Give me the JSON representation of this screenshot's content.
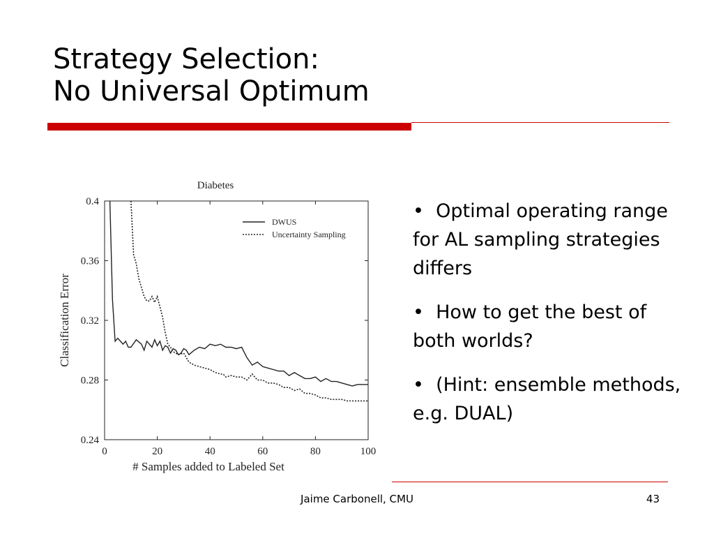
{
  "slide": {
    "title_lines": [
      "Strategy Selection:",
      "No Universal Optimum"
    ],
    "bullets": [
      "Optimal operating range for AL sampling strategies differs",
      "How to get the best of both worlds?",
      "(Hint: ensemble methods, e.g. DUAL)"
    ],
    "footer": "Jaime Carbonell, CMU",
    "page_number": "43",
    "accent_color": "#cc0000"
  },
  "chart_data": {
    "type": "line",
    "title": "Diabetes",
    "xlabel": "# Samples added to Labeled Set",
    "ylabel": "Classification Error",
    "xlim": [
      0,
      100
    ],
    "ylim": [
      0.24,
      0.4
    ],
    "x_ticks": [
      0,
      20,
      40,
      60,
      80,
      100
    ],
    "y_ticks": [
      "0.24",
      "0.28",
      "0.32",
      "0.36",
      "0.4"
    ],
    "legend": "top-right",
    "grid": false,
    "series": [
      {
        "name": "DWUS",
        "style": "solid",
        "x": [
          2,
          3,
          4,
          5,
          6,
          7,
          8,
          9,
          10,
          12,
          14,
          15,
          16,
          18,
          19,
          20,
          21,
          22,
          23,
          24,
          25,
          26,
          27,
          28,
          29,
          30,
          31,
          32,
          34,
          36,
          38,
          40,
          42,
          44,
          46,
          48,
          50,
          52,
          54,
          56,
          58,
          60,
          62,
          64,
          66,
          68,
          70,
          72,
          74,
          76,
          78,
          80,
          82,
          84,
          86,
          88,
          90,
          92,
          94,
          96,
          98,
          100
        ],
        "y": [
          0.4,
          0.334,
          0.306,
          0.308,
          0.306,
          0.304,
          0.306,
          0.302,
          0.302,
          0.307,
          0.304,
          0.3,
          0.306,
          0.302,
          0.307,
          0.303,
          0.306,
          0.3,
          0.303,
          0.302,
          0.298,
          0.301,
          0.3,
          0.297,
          0.298,
          0.301,
          0.3,
          0.297,
          0.3,
          0.302,
          0.301,
          0.304,
          0.303,
          0.304,
          0.302,
          0.302,
          0.301,
          0.302,
          0.295,
          0.29,
          0.292,
          0.289,
          0.288,
          0.287,
          0.286,
          0.286,
          0.283,
          0.285,
          0.283,
          0.281,
          0.281,
          0.282,
          0.279,
          0.281,
          0.279,
          0.279,
          0.278,
          0.277,
          0.276,
          0.277,
          0.277,
          0.277
        ]
      },
      {
        "name": "Uncertainty Sampling",
        "style": "dotted",
        "x": [
          10,
          11,
          12,
          13,
          14,
          15,
          16,
          17,
          18,
          19,
          20,
          22,
          23,
          24,
          25,
          26,
          27,
          28,
          30,
          32,
          34,
          36,
          38,
          40,
          42,
          44,
          45,
          46,
          48,
          50,
          52,
          54,
          56,
          58,
          60,
          62,
          64,
          66,
          68,
          70,
          72,
          74,
          76,
          78,
          80,
          82,
          84,
          86,
          88,
          90,
          92,
          94,
          96,
          98,
          100
        ],
        "y": [
          0.4,
          0.364,
          0.358,
          0.348,
          0.342,
          0.336,
          0.333,
          0.333,
          0.336,
          0.332,
          0.336,
          0.322,
          0.312,
          0.304,
          0.302,
          0.299,
          0.298,
          0.297,
          0.298,
          0.292,
          0.29,
          0.289,
          0.288,
          0.287,
          0.285,
          0.284,
          0.284,
          0.282,
          0.283,
          0.282,
          0.282,
          0.28,
          0.284,
          0.28,
          0.28,
          0.278,
          0.278,
          0.277,
          0.275,
          0.275,
          0.273,
          0.274,
          0.271,
          0.271,
          0.27,
          0.268,
          0.268,
          0.267,
          0.267,
          0.267,
          0.266,
          0.266,
          0.266,
          0.266,
          0.266
        ]
      }
    ]
  }
}
